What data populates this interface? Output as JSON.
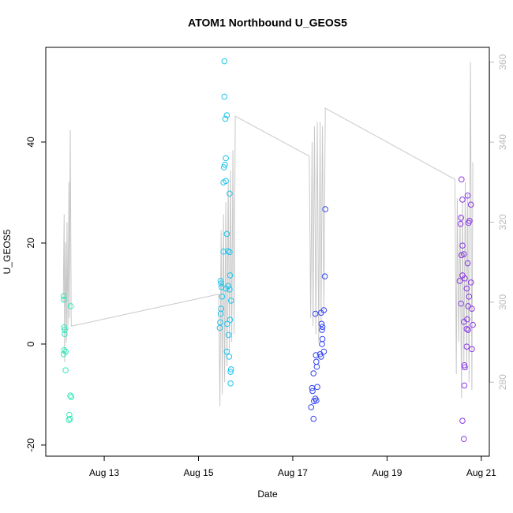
{
  "chart_data": {
    "type": "scatter",
    "title": "ATOM1 Northbound U_GEOS5",
    "x_label": "Date",
    "y_label": "U_GEOS5",
    "xlim": [
      11.76,
      21.17
    ],
    "ylim": [
      -22.2,
      58.75
    ],
    "y2lim": [
      261.5,
      363.7
    ],
    "xticks": [
      {
        "value": 13,
        "label": "Aug 13"
      },
      {
        "value": 15,
        "label": "Aug 15"
      },
      {
        "value": 17,
        "label": "Aug 17"
      },
      {
        "value": 19,
        "label": "Aug 19"
      },
      {
        "value": 21,
        "label": "Aug 21"
      }
    ],
    "yticks": [
      -20,
      0,
      20,
      40
    ],
    "y2ticks": [
      280,
      300,
      320,
      340,
      360
    ],
    "series": [
      {
        "type": "line",
        "axis": "y2",
        "color": "#c8c8c8",
        "x": [
          12.13,
          12.15,
          12.16,
          12.18,
          12.2,
          12.21,
          12.23,
          12.25,
          12.26,
          12.28,
          12.3,
          15.43,
          15.455,
          15.48,
          15.505,
          15.53,
          15.555,
          15.58,
          15.605,
          15.63,
          15.655,
          15.68,
          15.705,
          15.73,
          15.755,
          15.78,
          17.35,
          17.38,
          17.41,
          17.43,
          17.46,
          17.49,
          17.52,
          17.55,
          17.58,
          17.6,
          17.63,
          17.66,
          17.69,
          20.44,
          20.47,
          20.49,
          20.52,
          20.55,
          20.58,
          20.6,
          20.63,
          20.66,
          20.69,
          20.71,
          20.74,
          20.77,
          20.8,
          20.82
        ],
        "values": [
          300,
          322,
          285,
          315,
          290,
          320,
          293,
          330,
          296,
          343,
          294,
          302,
          274,
          318,
          277,
          322,
          280,
          325,
          284,
          330,
          288,
          333,
          290,
          338,
          292,
          346.5,
          336.5,
          296,
          340,
          294,
          344,
          292,
          345,
          290,
          345,
          295,
          344,
          298,
          348.5,
          330.7,
          282,
          326,
          290,
          322,
          276,
          325,
          285,
          330,
          283,
          327,
          280,
          360,
          278,
          335
        ]
      },
      {
        "type": "scatter",
        "color": "#2ee8b8",
        "x": [
          12.14,
          12.14,
          12.15,
          12.16,
          12.16,
          12.15,
          12.14,
          12.18,
          12.18,
          12.29,
          12.28,
          12.3,
          12.26,
          12.25,
          12.28
        ],
        "values": [
          9.5,
          8.8,
          3.3,
          2.8,
          2.0,
          -1.2,
          -2,
          -1.5,
          -5.2,
          7.5,
          -10.2,
          -10.5,
          -14,
          -15,
          -14.8
        ]
      },
      {
        "type": "scatter",
        "color": "#1ec4ec",
        "x": [
          15.55,
          15.55,
          15.6,
          15.57,
          15.58,
          15.56,
          15.54,
          15.58,
          15.53,
          15.66,
          15.6,
          15.62,
          15.53,
          15.66,
          15.67,
          15.47,
          15.48,
          15.63,
          15.49,
          15.58,
          15.66,
          15.5,
          15.69,
          15.48,
          15.47,
          15.67,
          15.46,
          15.61,
          15.45,
          15.64,
          15.6,
          15.65,
          15.69,
          15.68,
          15.68
        ],
        "values": [
          56,
          49,
          45.3,
          44.6,
          36.8,
          35.5,
          35,
          32.3,
          32,
          29.8,
          21.8,
          18.4,
          18.3,
          18.2,
          13.6,
          12.5,
          12,
          11.5,
          11.3,
          11,
          10.8,
          9.4,
          8.6,
          7,
          6,
          4.8,
          4.3,
          4,
          3.2,
          1.8,
          -1.5,
          -2.5,
          -5,
          -5.5,
          -7.8
        ]
      },
      {
        "type": "scatter",
        "color": "#3344f0",
        "x": [
          17.69,
          17.68,
          17.66,
          17.6,
          17.48,
          17.61,
          17.63,
          17.62,
          17.63,
          17.62,
          17.66,
          17.58,
          17.49,
          17.6,
          17.5,
          17.51,
          17.44,
          17.52,
          17.41,
          17.42,
          17.48,
          17.45,
          17.5,
          17.39,
          17.44
        ],
        "values": [
          26.7,
          13.4,
          6.7,
          6.2,
          6.0,
          4,
          3.4,
          2.8,
          1.0,
          0,
          -1.5,
          -2,
          -2.2,
          -2.5,
          -3.5,
          -4.5,
          -5.8,
          -8.5,
          -8.7,
          -9.3,
          -10.8,
          -11.3,
          -11.2,
          -12.5,
          -14.8
        ]
      },
      {
        "type": "scatter",
        "color": "#8a38e6",
        "x": [
          20.58,
          20.71,
          20.6,
          20.78,
          20.57,
          20.75,
          20.73,
          20.56,
          20.6,
          20.63,
          20.58,
          20.71,
          20.6,
          20.54,
          20.78,
          20.65,
          20.69,
          20.74,
          20.57,
          20.72,
          20.8,
          20.7,
          20.63,
          20.82,
          20.69,
          20.72,
          20.69,
          20.8,
          20.64,
          20.65,
          20.64,
          20.6,
          20.63
        ],
        "values": [
          32.6,
          29.4,
          28.6,
          27.6,
          25,
          24.4,
          24,
          23.8,
          19.5,
          17.8,
          17.6,
          16,
          13.6,
          12.5,
          12.2,
          13,
          11,
          9.4,
          8,
          7.5,
          7,
          4.9,
          4.4,
          3.8,
          3,
          2.8,
          -0.5,
          -1,
          -4.2,
          -4.6,
          -8.2,
          -15.2,
          -18.8
        ]
      }
    ]
  }
}
